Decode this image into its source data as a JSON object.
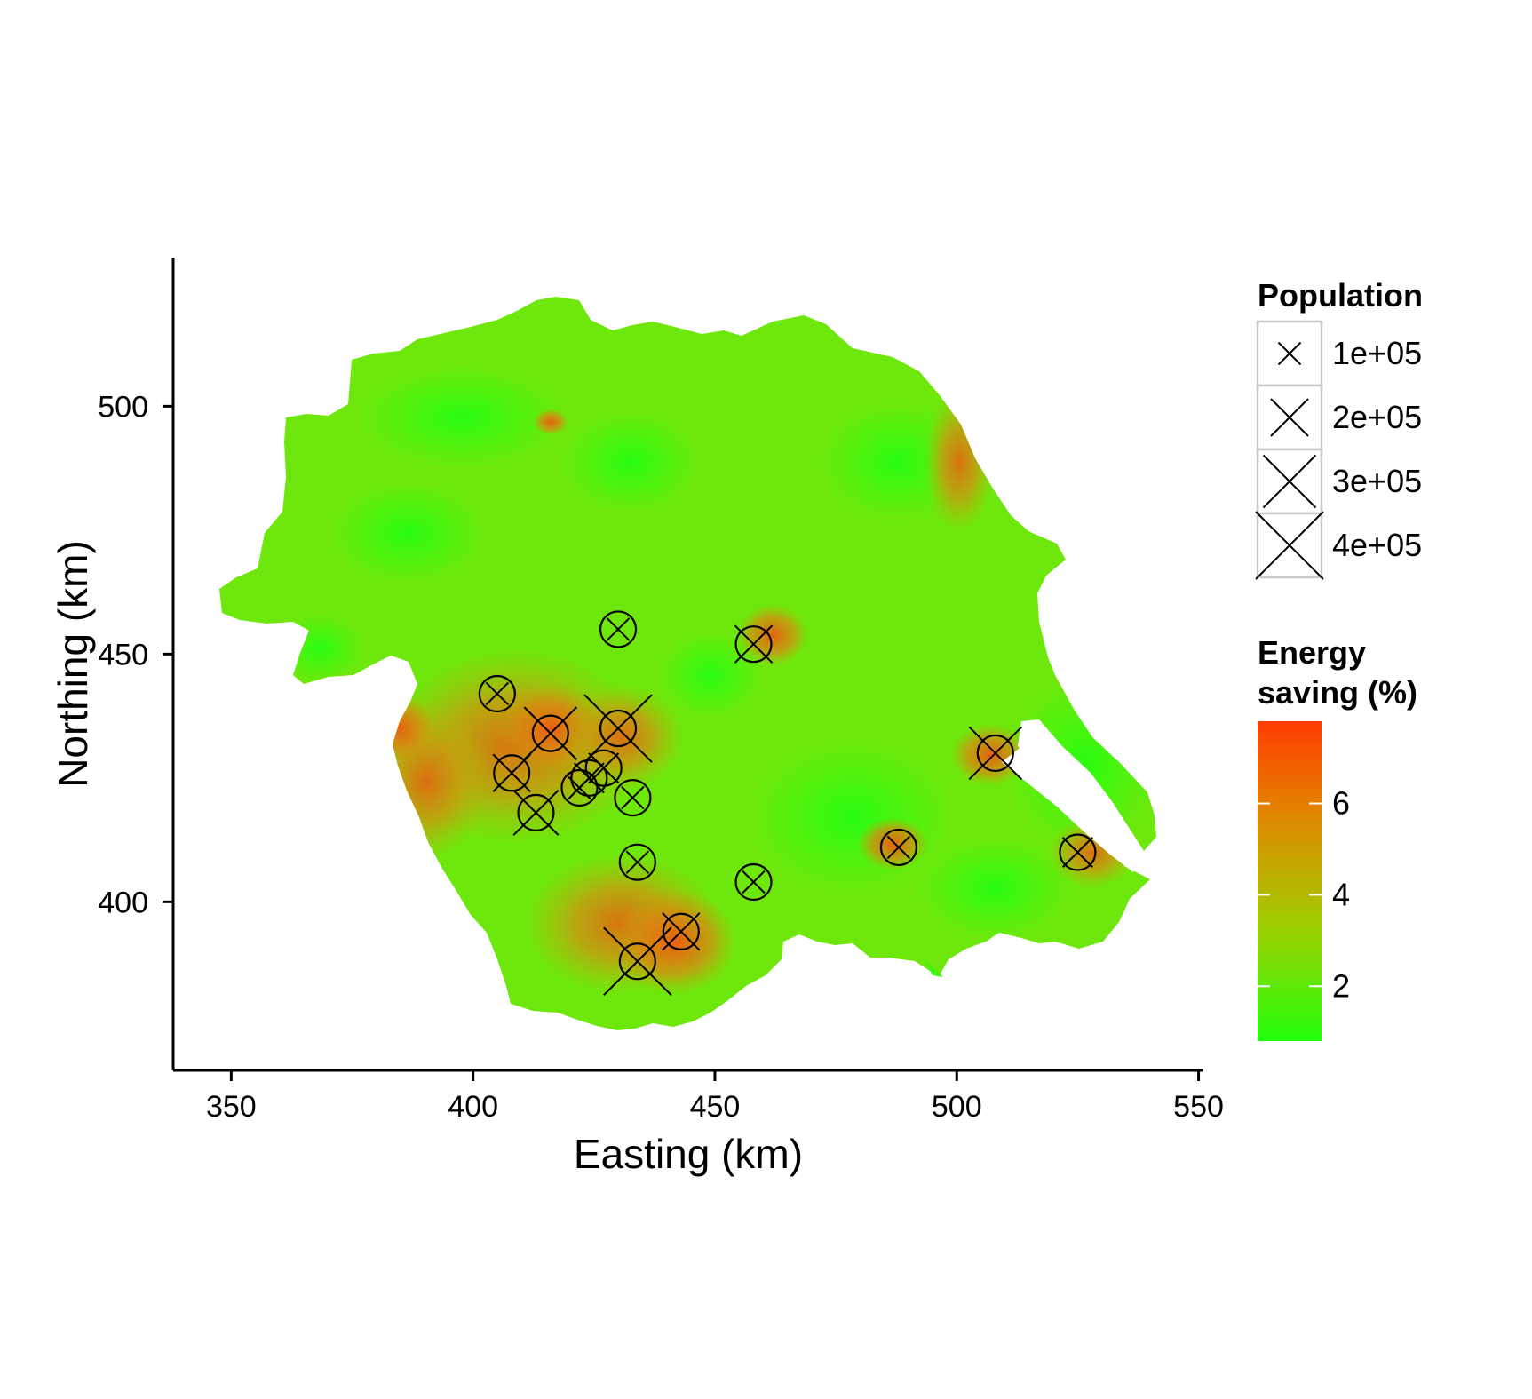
{
  "chart_data": {
    "type": "scatter",
    "xlabel": "Easting (km)",
    "ylabel": "Northing (km)",
    "xlim": [
      338,
      551
    ],
    "ylim": [
      366,
      530
    ],
    "x_ticks": [
      350,
      400,
      450,
      500,
      550
    ],
    "y_ticks": [
      400,
      450,
      500
    ],
    "grid": false,
    "background": "choropleth map of energy saving (%) by area, colored on a green-to-red gradient",
    "points": [
      {
        "x": 430,
        "y": 455,
        "population": 100000
      },
      {
        "x": 458,
        "y": 452,
        "population": 200000
      },
      {
        "x": 405,
        "y": 442,
        "population": 100000
      },
      {
        "x": 416,
        "y": 434,
        "population": 300000
      },
      {
        "x": 430,
        "y": 435,
        "population": 400000
      },
      {
        "x": 427,
        "y": 427,
        "population": 150000
      },
      {
        "x": 424,
        "y": 425,
        "population": 150000
      },
      {
        "x": 422,
        "y": 423,
        "population": 100000
      },
      {
        "x": 408,
        "y": 426,
        "population": 200000
      },
      {
        "x": 413,
        "y": 418,
        "population": 250000
      },
      {
        "x": 433,
        "y": 421,
        "population": 100000
      },
      {
        "x": 434,
        "y": 408,
        "population": 100000
      },
      {
        "x": 458,
        "y": 404,
        "population": 100000
      },
      {
        "x": 443,
        "y": 394,
        "population": 200000
      },
      {
        "x": 434,
        "y": 388,
        "population": 400000
      },
      {
        "x": 488,
        "y": 411,
        "population": 100000
      },
      {
        "x": 508,
        "y": 430,
        "population": 300000
      },
      {
        "x": 525,
        "y": 410,
        "population": 150000
      }
    ],
    "size_legend": {
      "title": "Population",
      "placement": "right",
      "entries": [
        {
          "label": "1e+05",
          "value": 100000
        },
        {
          "label": "2e+05",
          "value": 200000
        },
        {
          "label": "3e+05",
          "value": 300000
        },
        {
          "label": "4e+05",
          "value": 400000
        }
      ]
    },
    "color_legend": {
      "title_line1": "Energy",
      "title_line2": "saving (%)",
      "placement": "right",
      "min": 0.8,
      "max": 7.8,
      "ticks": [
        {
          "label": "2",
          "value": 2
        },
        {
          "label": "4",
          "value": 4
        },
        {
          "label": "6",
          "value": 6
        }
      ],
      "colors": [
        "#22ff0c",
        "#9dd000",
        "#e08800",
        "#ff3c00"
      ]
    }
  }
}
